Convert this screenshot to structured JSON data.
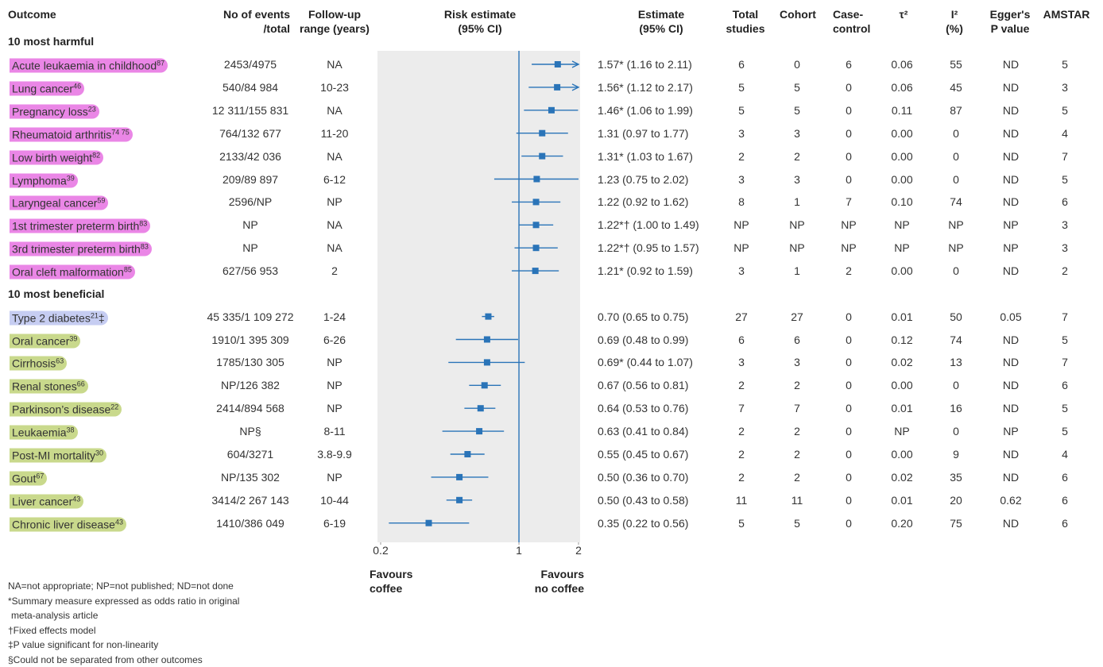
{
  "chart_data": {
    "type": "forest",
    "log_x": true,
    "xlim": [
      0.2,
      2
    ],
    "xticks": [
      0.2,
      1,
      2
    ],
    "reference": 1,
    "mark_color": "#2a74b8",
    "band_color": "#ececec",
    "headers": [
      [
        "Outcome"
      ],
      [
        "No of events",
        "/total"
      ],
      [
        "Follow-up",
        "range (years)"
      ],
      [
        "Risk estimate",
        "(95% CI)"
      ],
      [
        "Estimate",
        "(95% CI)"
      ],
      [
        "Total",
        "studies"
      ],
      [
        "Cohort"
      ],
      [
        "Case-",
        "control"
      ],
      [
        "τ²"
      ],
      [
        "I²",
        "(%)"
      ],
      [
        "Egger's",
        "P value"
      ],
      [
        "AMSTAR"
      ]
    ],
    "favours_left": [
      "Favours",
      "coffee"
    ],
    "favours_right": [
      "Favours",
      "no coffee"
    ],
    "groups": [
      {
        "title": "10 most harmful",
        "color": "#ea86e6",
        "rows": [
          {
            "o": "Acute leukaemia in childhood",
            "ref": "87",
            "events": "2453/4975",
            "follow": "NA",
            "est": 1.57,
            "lo": 1.16,
            "hi": 2.11,
            "arrow": true,
            "label": "1.57* (1.16 to 2.11)",
            "total": "6",
            "cohort": "0",
            "cc": "6",
            "tau": "0.06",
            "i2": "55",
            "egger": "ND",
            "amstar": "5"
          },
          {
            "o": "Lung cancer",
            "ref": "46",
            "events": "540/84 984",
            "follow": "10-23",
            "est": 1.56,
            "lo": 1.12,
            "hi": 2.17,
            "arrow": true,
            "label": "1.56* (1.12 to 2.17)",
            "total": "5",
            "cohort": "5",
            "cc": "0",
            "tau": "0.06",
            "i2": "45",
            "egger": "ND",
            "amstar": "3"
          },
          {
            "o": "Pregnancy loss",
            "ref": "23",
            "events": "12 311/155 831",
            "follow": "NA",
            "est": 1.46,
            "lo": 1.06,
            "hi": 1.99,
            "label": "1.46* (1.06 to 1.99)",
            "total": "5",
            "cohort": "5",
            "cc": "0",
            "tau": "0.11",
            "i2": "87",
            "egger": "ND",
            "amstar": "5"
          },
          {
            "o": "Rheumatoid arthritis",
            "ref": "74 75",
            "events": "764/132 677",
            "follow": "11-20",
            "est": 1.31,
            "lo": 0.97,
            "hi": 1.77,
            "label": "1.31 (0.97 to 1.77)",
            "total": "3",
            "cohort": "3",
            "cc": "0",
            "tau": "0.00",
            "i2": "0",
            "egger": "ND",
            "amstar": "4"
          },
          {
            "o": "Low birth weight",
            "ref": "82",
            "events": "2133/42 036",
            "follow": "NA",
            "est": 1.31,
            "lo": 1.03,
            "hi": 1.67,
            "label": "1.31* (1.03 to 1.67)",
            "total": "2",
            "cohort": "2",
            "cc": "0",
            "tau": "0.00",
            "i2": "0",
            "egger": "ND",
            "amstar": "7"
          },
          {
            "o": "Lymphoma",
            "ref": "39",
            "events": "209/89 897",
            "follow": "6-12",
            "est": 1.23,
            "lo": 0.75,
            "hi": 2.02,
            "label": "1.23 (0.75 to 2.02)",
            "total": "3",
            "cohort": "3",
            "cc": "0",
            "tau": "0.00",
            "i2": "0",
            "egger": "ND",
            "amstar": "5"
          },
          {
            "o": "Laryngeal cancer",
            "ref": "59",
            "events": "2596/NP",
            "follow": "NP",
            "est": 1.22,
            "lo": 0.92,
            "hi": 1.62,
            "label": "1.22 (0.92 to 1.62)",
            "total": "8",
            "cohort": "1",
            "cc": "7",
            "tau": "0.10",
            "i2": "74",
            "egger": "ND",
            "amstar": "6"
          },
          {
            "o": "1st trimester preterm birth",
            "ref": "83",
            "events": "NP",
            "follow": "NA",
            "est": 1.22,
            "lo": 1.0,
            "hi": 1.49,
            "label": "1.22*† (1.00 to 1.49)",
            "total": "NP",
            "cohort": "NP",
            "cc": "NP",
            "tau": "NP",
            "i2": "NP",
            "egger": "NP",
            "amstar": "3"
          },
          {
            "o": "3rd trimester preterm birth",
            "ref": "83",
            "events": "NP",
            "follow": "NA",
            "est": 1.22,
            "lo": 0.95,
            "hi": 1.57,
            "label": "1.22*† (0.95 to 1.57)",
            "total": "NP",
            "cohort": "NP",
            "cc": "NP",
            "tau": "NP",
            "i2": "NP",
            "egger": "NP",
            "amstar": "3"
          },
          {
            "o": "Oral cleft malformation",
            "ref": "85",
            "events": "627/56 953",
            "follow": "2",
            "est": 1.21,
            "lo": 0.92,
            "hi": 1.59,
            "label": "1.21* (0.92 to 1.59)",
            "total": "3",
            "cohort": "1",
            "cc": "2",
            "tau": "0.00",
            "i2": "0",
            "egger": "ND",
            "amstar": "2"
          }
        ]
      },
      {
        "title": "10 most beneficial",
        "color": "#c9d98c",
        "rows": [
          {
            "o": "Type 2 diabetes",
            "ref": "21",
            "mark": "‡",
            "color": "#c6cdf2",
            "events": "45 335/1 109 272",
            "follow": "1-24",
            "est": 0.7,
            "lo": 0.65,
            "hi": 0.75,
            "label": "0.70 (0.65 to 0.75)",
            "total": "27",
            "cohort": "27",
            "cc": "0",
            "tau": "0.01",
            "i2": "50",
            "egger": "0.05",
            "amstar": "7"
          },
          {
            "o": "Oral cancer",
            "ref": "39",
            "events": "1910/1 395 309",
            "follow": "6-26",
            "est": 0.69,
            "lo": 0.48,
            "hi": 0.99,
            "label": "0.69 (0.48 to 0.99)",
            "total": "6",
            "cohort": "6",
            "cc": "0",
            "tau": "0.12",
            "i2": "74",
            "egger": "ND",
            "amstar": "5"
          },
          {
            "o": "Cirrhosis",
            "ref": "63",
            "events": "1785/130 305",
            "follow": "NP",
            "est": 0.69,
            "lo": 0.44,
            "hi": 1.07,
            "label": "0.69* (0.44 to 1.07)",
            "total": "3",
            "cohort": "3",
            "cc": "0",
            "tau": "0.02",
            "i2": "13",
            "egger": "ND",
            "amstar": "7"
          },
          {
            "o": "Renal stones",
            "ref": "66",
            "events": "NP/126 382",
            "follow": "NP",
            "est": 0.67,
            "lo": 0.56,
            "hi": 0.81,
            "label": "0.67 (0.56 to 0.81)",
            "total": "2",
            "cohort": "2",
            "cc": "0",
            "tau": "0.00",
            "i2": "0",
            "egger": "ND",
            "amstar": "6"
          },
          {
            "o": "Parkinson’s disease",
            "ref": "22",
            "events": "2414/894 568",
            "follow": "NP",
            "est": 0.64,
            "lo": 0.53,
            "hi": 0.76,
            "label": "0.64 (0.53 to 0.76)",
            "total": "7",
            "cohort": "7",
            "cc": "0",
            "tau": "0.01",
            "i2": "16",
            "egger": "ND",
            "amstar": "5"
          },
          {
            "o": "Leukaemia",
            "ref": "38",
            "events": "NP§",
            "follow": "8-11",
            "est": 0.63,
            "lo": 0.41,
            "hi": 0.84,
            "label": "0.63 (0.41 to 0.84)",
            "total": "2",
            "cohort": "2",
            "cc": "0",
            "tau": "NP",
            "i2": "0",
            "egger": "NP",
            "amstar": "5"
          },
          {
            "o": "Post-MI mortality",
            "ref": "30",
            "events": "604/3271",
            "follow": "3.8-9.9",
            "est": 0.55,
            "lo": 0.45,
            "hi": 0.67,
            "label": "0.55 (0.45 to 0.67)",
            "total": "2",
            "cohort": "2",
            "cc": "0",
            "tau": "0.00",
            "i2": "9",
            "egger": "ND",
            "amstar": "4"
          },
          {
            "o": "Gout",
            "ref": "67",
            "events": "NP/135 302",
            "follow": "NP",
            "est": 0.5,
            "lo": 0.36,
            "hi": 0.7,
            "label": "0.50 (0.36 to 0.70)",
            "total": "2",
            "cohort": "2",
            "cc": "0",
            "tau": "0.02",
            "i2": "35",
            "egger": "ND",
            "amstar": "6"
          },
          {
            "o": "Liver cancer",
            "ref": "43",
            "events": "3414/2 267 143",
            "follow": "10-44",
            "est": 0.5,
            "lo": 0.43,
            "hi": 0.58,
            "label": "0.50 (0.43 to 0.58)",
            "total": "11",
            "cohort": "11",
            "cc": "0",
            "tau": "0.01",
            "i2": "20",
            "egger": "0.62",
            "amstar": "6"
          },
          {
            "o": "Chronic liver disease",
            "ref": "43",
            "events": "1410/386 049",
            "follow": "6-19",
            "est": 0.35,
            "lo": 0.22,
            "hi": 0.56,
            "label": "0.35 (0.22 to 0.56)",
            "total": "5",
            "cohort": "5",
            "cc": "0",
            "tau": "0.20",
            "i2": "75",
            "egger": "ND",
            "amstar": "6"
          }
        ]
      }
    ],
    "footnotes": [
      [
        "NA=not appropriate; NP=not published; ND=not done"
      ],
      [
        "*Summary measure expressed as odds ratio in original",
        "meta-analysis article"
      ],
      [
        "†Fixed effects model"
      ],
      [
        "‡P value significant for non-linearity"
      ],
      [
        "§Could not be separated from other outcomes"
      ]
    ]
  }
}
